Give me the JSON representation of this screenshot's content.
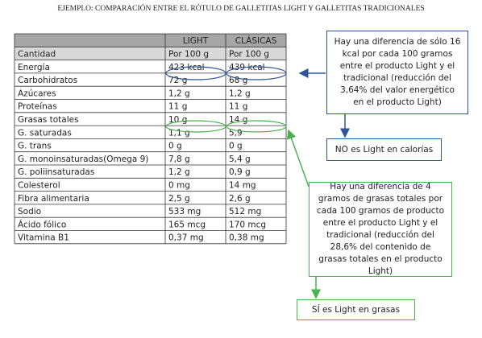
{
  "title": "EJEMPLO: COMPARACIÓN ENTRE EL RÓTULO DE GALLETITAS LIGHT Y GALLETITAS TRADICIONALES",
  "table": {
    "headers": [
      "LIGHT",
      "CLÁSICAS"
    ],
    "rows": [
      [
        "Cantidad",
        "Por 100 g",
        "Por 100 g"
      ],
      [
        "Energía",
        "423 kcal",
        "439 kcal"
      ],
      [
        "Carbohidratos",
        "72 g",
        "68 g"
      ],
      [
        "Azúcares",
        "1,2 g",
        "1,2 g"
      ],
      [
        "Proteínas",
        "11 g",
        "11 g"
      ],
      [
        "Grasas totales",
        "10 g",
        "14 g"
      ],
      [
        "G. saturadas",
        "1,1 g",
        "5,9"
      ],
      [
        "G. trans",
        "0 g",
        "0 g"
      ],
      [
        "G. monoinsaturadas(Omega 9)",
        "7,8 g",
        "5,4 g"
      ],
      [
        "G. poliinsaturadas",
        "1,2 g",
        "0,9 g"
      ],
      [
        "Colesterol",
        "0 mg",
        "14 mg"
      ],
      [
        "Fibra alimentaria",
        "2,5 g",
        "2,6 g"
      ],
      [
        "Sodio",
        "533 mg",
        "512 mg"
      ],
      [
        "Ácido fólico",
        "165 mcg",
        "170 mcg"
      ],
      [
        "Vitamina B1",
        "0,37 mg",
        "0,38 mg"
      ]
    ]
  },
  "notes": {
    "calories": "Hay una diferencia de sólo 16 kcal por cada 100 gramos entre el producto Light y el tradicional (reducción del 3,64% del valor energético en el producto Light)",
    "calories_result": "NO es Light en calorías",
    "fat": "Hay una diferencia de 4 gramos de grasas totales por cada 100 gramos de producto entre el producto Light y el tradicional (reducción del 28,6% del contenido de grasas totales en el producto Light)",
    "fat_result": "SÍ es Light en grasas"
  }
}
